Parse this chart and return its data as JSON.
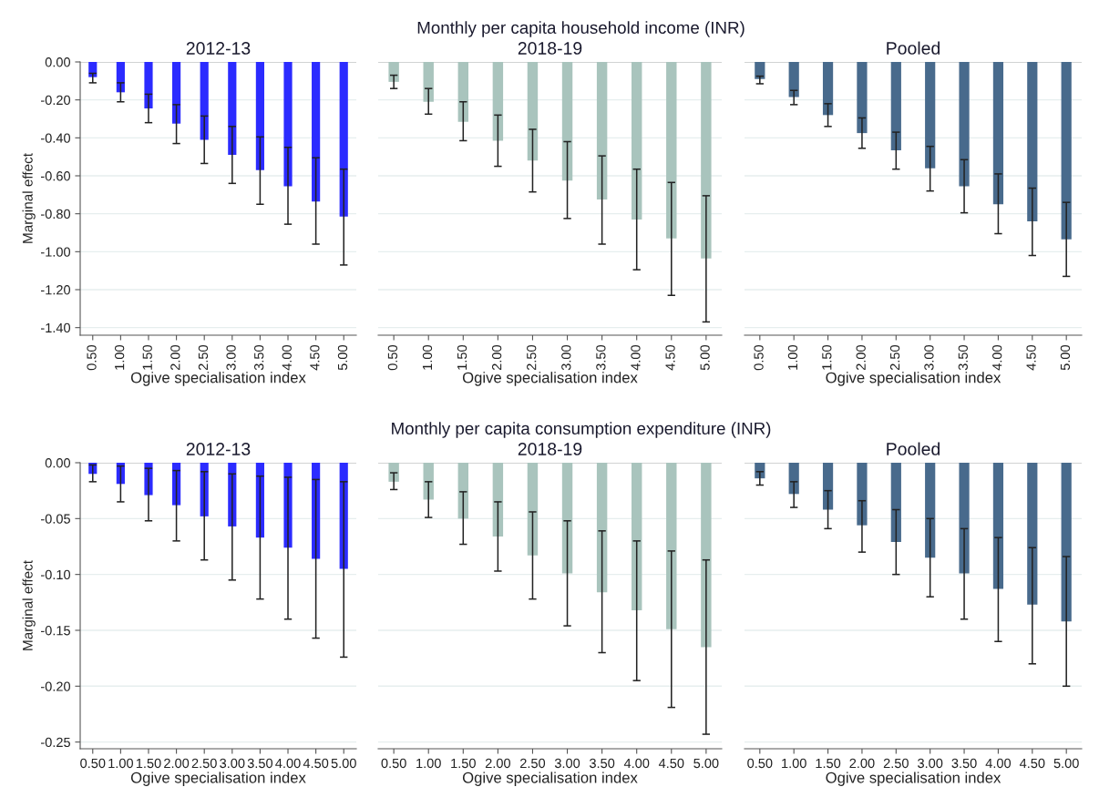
{
  "chart_data": [
    {
      "type": "bar",
      "title": "2012-13",
      "xlabel": "Ogive specialisation index",
      "ylabel": "Marginal effect",
      "categories": [
        "0.50",
        "1.00",
        "1.50",
        "2.00",
        "2.50",
        "3.00",
        "3.50",
        "4.00",
        "4.50",
        "5.00"
      ],
      "series": [
        {
          "color": "#2b2bff",
          "values": [
            -0.08,
            -0.16,
            -0.245,
            -0.325,
            -0.41,
            -0.49,
            -0.57,
            -0.655,
            -0.735,
            -0.815
          ],
          "errors": [
            [
              -0.11,
              -0.06
            ],
            [
              -0.21,
              -0.11
            ],
            [
              -0.32,
              -0.17
            ],
            [
              -0.43,
              -0.225
            ],
            [
              -0.535,
              -0.285
            ],
            [
              -0.64,
              -0.34
            ],
            [
              -0.75,
              -0.395
            ],
            [
              -0.855,
              -0.45
            ],
            [
              -0.96,
              -0.505
            ],
            [
              -1.07,
              -0.565
            ]
          ]
        }
      ],
      "ylim": [
        -1.44,
        0
      ],
      "yticks": [
        {
          "value": 0,
          "label": "0.00"
        },
        {
          "value": -0.2,
          "label": "-0.20"
        },
        {
          "value": -0.4,
          "label": "-0.40"
        },
        {
          "value": -0.6,
          "label": "-0.60"
        },
        {
          "value": -0.8,
          "label": "-0.80"
        },
        {
          "value": -1.0,
          "label": "-1.00"
        },
        {
          "value": -1.2,
          "label": "-1.20"
        },
        {
          "value": -1.4,
          "label": "-1.40"
        }
      ],
      "grid": "y"
    },
    {
      "type": "bar",
      "title": "2018-19",
      "xlabel": "Ogive specialisation index",
      "annotations": [
        "Monthly per capita household income (INR)"
      ],
      "categories": [
        "0.50",
        "1.00",
        "1.50",
        "2.00",
        "2.50",
        "3.00",
        "3.50",
        "4.00",
        "4.50",
        "5.00"
      ],
      "series": [
        {
          "color": "#a9c4bd",
          "values": [
            -0.105,
            -0.21,
            -0.315,
            -0.415,
            -0.52,
            -0.625,
            -0.725,
            -0.83,
            -0.93,
            -1.035
          ],
          "errors": [
            [
              -0.14,
              -0.07
            ],
            [
              -0.275,
              -0.14
            ],
            [
              -0.415,
              -0.21
            ],
            [
              -0.55,
              -0.28
            ],
            [
              -0.685,
              -0.355
            ],
            [
              -0.825,
              -0.42
            ],
            [
              -0.96,
              -0.495
            ],
            [
              -1.095,
              -0.565
            ],
            [
              -1.23,
              -0.635
            ],
            [
              -1.37,
              -0.705
            ]
          ]
        }
      ],
      "ylim": [
        -1.44,
        0
      ],
      "yticks": [
        {
          "value": 0,
          "label": null
        },
        {
          "value": -0.2,
          "label": null
        },
        {
          "value": -0.4,
          "label": null
        },
        {
          "value": -0.6,
          "label": null
        },
        {
          "value": -0.8,
          "label": null
        },
        {
          "value": -1.0,
          "label": null
        },
        {
          "value": -1.2,
          "label": null
        },
        {
          "value": -1.4,
          "label": null
        }
      ],
      "grid": "y",
      "tick_labels": "x"
    },
    {
      "type": "bar",
      "title": "Pooled",
      "xlabel": "Ogive specialisation index",
      "categories": [
        "0.50",
        "1.00",
        "1.50",
        "2.00",
        "2.50",
        "3.00",
        "3.50",
        "4.00",
        "4.50",
        "5.00"
      ],
      "series": [
        {
          "color": "#486a8c",
          "values": [
            -0.09,
            -0.185,
            -0.28,
            -0.375,
            -0.465,
            -0.56,
            -0.655,
            -0.75,
            -0.84,
            -0.935
          ],
          "errors": [
            [
              -0.115,
              -0.075
            ],
            [
              -0.225,
              -0.15
            ],
            [
              -0.34,
              -0.22
            ],
            [
              -0.455,
              -0.295
            ],
            [
              -0.565,
              -0.37
            ],
            [
              -0.68,
              -0.445
            ],
            [
              -0.795,
              -0.515
            ],
            [
              -0.905,
              -0.59
            ],
            [
              -1.02,
              -0.665
            ],
            [
              -1.13,
              -0.74
            ]
          ]
        }
      ],
      "ylim": [
        -1.44,
        0
      ],
      "yticks": [
        {
          "value": 0,
          "label": null
        },
        {
          "value": -0.2,
          "label": null
        },
        {
          "value": -0.4,
          "label": null
        },
        {
          "value": -0.6,
          "label": null
        },
        {
          "value": -0.8,
          "label": null
        },
        {
          "value": -1.0,
          "label": null
        },
        {
          "value": -1.2,
          "label": null
        },
        {
          "value": -1.4,
          "label": null
        }
      ],
      "grid": "y",
      "tick_labels": "x"
    },
    {
      "type": "bar",
      "title": "2012-13",
      "xlabel": "Ogive specialisation index",
      "ylabel": "Marginal effect",
      "categories": [
        "0.50",
        "1.00",
        "1.50",
        "2.00",
        "2.50",
        "3.00",
        "3.50",
        "4.00",
        "4.50",
        "5.00"
      ],
      "series": [
        {
          "color": "#2b2bff",
          "values": [
            -0.01,
            -0.019,
            -0.029,
            -0.038,
            -0.048,
            -0.057,
            -0.067,
            -0.076,
            -0.086,
            -0.095
          ],
          "errors": [
            [
              -0.017,
              -0.002
            ],
            [
              -0.035,
              -0.003
            ],
            [
              -0.052,
              -0.005
            ],
            [
              -0.07,
              -0.007
            ],
            [
              -0.087,
              -0.008
            ],
            [
              -0.105,
              -0.01
            ],
            [
              -0.122,
              -0.012
            ],
            [
              -0.14,
              -0.013
            ],
            [
              -0.157,
              -0.015
            ],
            [
              -0.174,
              -0.017
            ]
          ]
        }
      ],
      "ylim": [
        -0.256,
        0
      ],
      "yticks": [
        {
          "value": 0,
          "label": "0.00"
        },
        {
          "value": -0.05,
          "label": "-0.05"
        },
        {
          "value": -0.1,
          "label": "-0.10"
        },
        {
          "value": -0.15,
          "label": "-0.15"
        },
        {
          "value": -0.2,
          "label": "-0.20"
        },
        {
          "value": -0.25,
          "label": "-0.25"
        }
      ],
      "grid": "y"
    },
    {
      "type": "bar",
      "title": "2018-19",
      "xlabel": "Ogive specialisation index",
      "annotations": [
        "Monthly per capita consumption expenditure (INR)"
      ],
      "categories": [
        "0.50",
        "1.00",
        "1.50",
        "2.00",
        "2.50",
        "3.00",
        "3.50",
        "4.00",
        "4.50",
        "5.00"
      ],
      "series": [
        {
          "color": "#a9c4bd",
          "values": [
            -0.017,
            -0.033,
            -0.05,
            -0.066,
            -0.083,
            -0.099,
            -0.116,
            -0.132,
            -0.149,
            -0.165
          ],
          "errors": [
            [
              -0.024,
              -0.009
            ],
            [
              -0.049,
              -0.017
            ],
            [
              -0.073,
              -0.026
            ],
            [
              -0.097,
              -0.035
            ],
            [
              -0.122,
              -0.044
            ],
            [
              -0.146,
              -0.052
            ],
            [
              -0.17,
              -0.061
            ],
            [
              -0.195,
              -0.07
            ],
            [
              -0.219,
              -0.079
            ],
            [
              -0.243,
              -0.087
            ]
          ]
        }
      ],
      "ylim": [
        -0.256,
        0
      ],
      "yticks": [
        {
          "value": 0,
          "label": null
        },
        {
          "value": -0.05,
          "label": null
        },
        {
          "value": -0.1,
          "label": null
        },
        {
          "value": -0.15,
          "label": null
        },
        {
          "value": -0.2,
          "label": null
        },
        {
          "value": -0.25,
          "label": null
        }
      ],
      "grid": "y",
      "tick_labels": "x"
    },
    {
      "type": "bar",
      "title": "Pooled",
      "xlabel": "Ogive specialisation index",
      "categories": [
        "0.50",
        "1.00",
        "1.50",
        "2.00",
        "2.50",
        "3.00",
        "3.50",
        "4.00",
        "4.50",
        "5.00"
      ],
      "series": [
        {
          "color": "#486a8c",
          "values": [
            -0.014,
            -0.028,
            -0.042,
            -0.056,
            -0.071,
            -0.085,
            -0.099,
            -0.113,
            -0.127,
            -0.142
          ],
          "errors": [
            [
              -0.02,
              -0.008
            ],
            [
              -0.04,
              -0.017
            ],
            [
              -0.059,
              -0.025
            ],
            [
              -0.08,
              -0.034
            ],
            [
              -0.1,
              -0.042
            ],
            [
              -0.12,
              -0.05
            ],
            [
              -0.14,
              -0.059
            ],
            [
              -0.16,
              -0.067
            ],
            [
              -0.18,
              -0.076
            ],
            [
              -0.2,
              -0.084
            ]
          ]
        }
      ],
      "ylim": [
        -0.256,
        0
      ],
      "yticks": [
        {
          "value": 0,
          "label": null
        },
        {
          "value": -0.05,
          "label": null
        },
        {
          "value": -0.1,
          "label": null
        },
        {
          "value": -0.15,
          "label": null
        },
        {
          "value": -0.2,
          "label": null
        },
        {
          "value": -0.25,
          "label": null
        }
      ],
      "grid": "y",
      "tick_labels": "x"
    }
  ]
}
